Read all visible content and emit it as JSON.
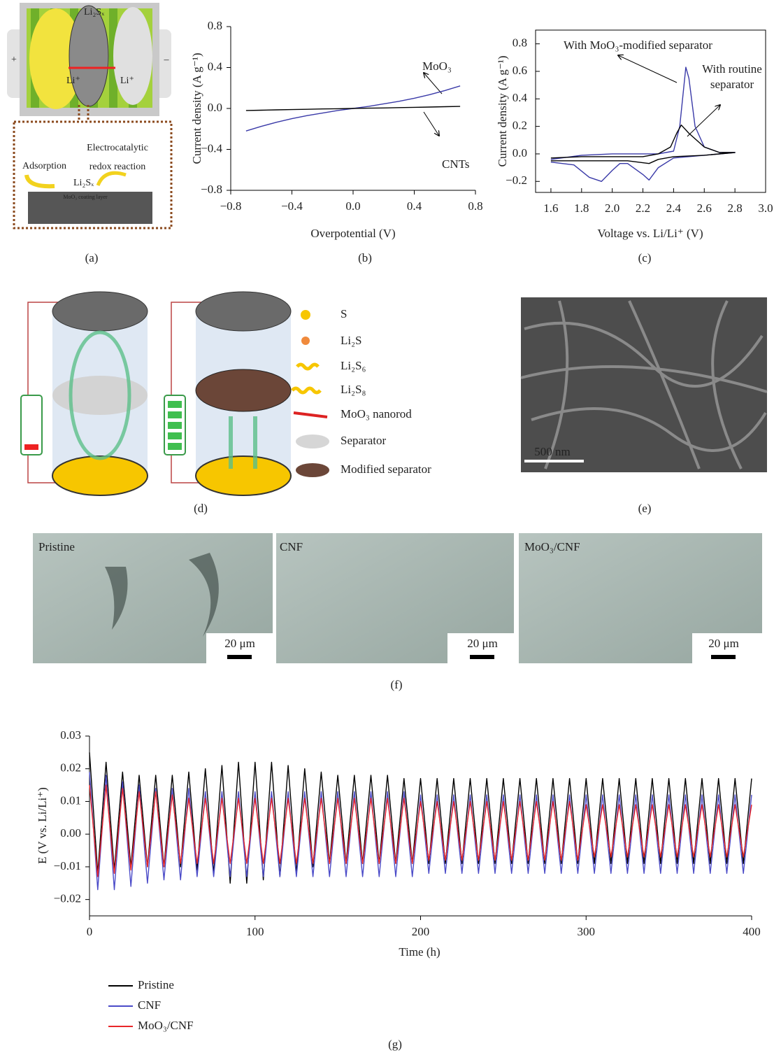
{
  "panel_labels": [
    "(a)",
    "(b)",
    "(c)",
    "(d)",
    "(e)",
    "(f)",
    "(g)"
  ],
  "panel_a": {
    "texts": [
      "Li₂Sₓ",
      "Li⁺",
      "Li⁺",
      "+",
      "–",
      "Adsorption",
      "Electrocatalytic",
      "redox reaction",
      "Li₂Sₓ",
      "MoO₃ coating layer"
    ]
  },
  "panel_d": {
    "legend": [
      "S",
      "Li₂S",
      "Li₂S₆",
      "Li₂S₈",
      "MoO₃ nanorod",
      "Separator",
      "Modified separator"
    ]
  },
  "panel_e": {
    "scale_bar": "500 nm"
  },
  "panel_f": {
    "images": [
      {
        "label": "Pristine",
        "scale_bar": "20 μm"
      },
      {
        "label": "CNF",
        "scale_bar": "20 μm"
      },
      {
        "label": "MoO₃/CNF",
        "scale_bar": "20 μm"
      }
    ]
  },
  "chart_data": [
    {
      "type": "line",
      "xlabel": "Overpotential (V)",
      "ylabel": "Current density (A g⁻¹)",
      "x": [
        -0.7,
        -0.6,
        -0.5,
        -0.4,
        -0.3,
        -0.2,
        -0.1,
        0,
        0.1,
        0.2,
        0.3,
        0.4,
        0.5,
        0.6,
        0.7
      ],
      "series": [
        {
          "name": "MoO₃",
          "color": "#3a3aa8",
          "values": [
            -0.22,
            -0.175,
            -0.135,
            -0.1,
            -0.07,
            -0.045,
            -0.02,
            0,
            0.02,
            0.045,
            0.07,
            0.1,
            0.135,
            0.175,
            0.22
          ]
        },
        {
          "name": "CNTs",
          "color": "#000000",
          "values": [
            -0.02,
            -0.017,
            -0.014,
            -0.011,
            -0.008,
            -0.005,
            -0.003,
            0,
            0.003,
            0.005,
            0.008,
            0.011,
            0.014,
            0.017,
            0.02
          ]
        }
      ],
      "xlim": [
        -0.8,
        0.8
      ],
      "ylim": [
        -0.8,
        0.8
      ],
      "xticks": [
        {
          "value": -0.8,
          "label": "−0.8"
        },
        {
          "value": -0.4,
          "label": "−0.4"
        },
        {
          "value": 0,
          "label": "0.0"
        },
        0.4,
        0.8
      ],
      "yticks": [
        {
          "value": -0.8,
          "label": "−0.8"
        },
        {
          "value": -0.4,
          "label": "−0.4"
        },
        {
          "value": 0,
          "label": "0.0"
        },
        0.4,
        0.8
      ]
    },
    {
      "type": "line",
      "xlabel": "Voltage vs. Li/Li⁺ (V)",
      "ylabel": "Current density (A g⁻¹)",
      "series": [
        {
          "name": "With MoO₃-modified separator",
          "color": "#3a3aa8",
          "x": [
            1.6,
            1.8,
            2.0,
            2.2,
            2.3,
            2.4,
            2.44,
            2.48,
            2.5,
            2.54,
            2.6,
            2.7,
            2.8,
            2.6,
            2.4,
            2.3,
            2.24,
            2.2,
            2.1,
            2.05,
            2.0,
            1.93,
            1.85,
            1.75,
            1.6
          ],
          "values": [
            -0.04,
            -0.01,
            0.0,
            0.0,
            0.0,
            0.02,
            0.2,
            0.63,
            0.55,
            0.2,
            0.05,
            0.01,
            0.01,
            -0.01,
            -0.03,
            -0.1,
            -0.19,
            -0.15,
            -0.07,
            -0.07,
            -0.12,
            -0.2,
            -0.17,
            -0.08,
            -0.06
          ]
        },
        {
          "name": "With routine separator",
          "color": "#000000",
          "x": [
            1.6,
            1.8,
            2.0,
            2.2,
            2.3,
            2.38,
            2.42,
            2.45,
            2.5,
            2.6,
            2.7,
            2.8,
            2.6,
            2.4,
            2.3,
            2.24,
            2.1,
            2.0,
            1.8,
            1.6
          ],
          "values": [
            -0.03,
            -0.02,
            -0.02,
            -0.02,
            0.0,
            0.05,
            0.15,
            0.21,
            0.15,
            0.05,
            0.01,
            0.01,
            -0.01,
            -0.02,
            -0.04,
            -0.07,
            -0.05,
            -0.05,
            -0.05,
            -0.05
          ]
        }
      ],
      "xlim": [
        1.5,
        3.0
      ],
      "ylim": [
        -0.28,
        0.9
      ],
      "xticks": [
        1.6,
        1.8,
        {
          "value": 2,
          "label": "2.0"
        },
        2.2,
        2.4,
        2.6,
        2.8,
        {
          "value": 3,
          "label": "3.0"
        }
      ],
      "yticks": [
        {
          "value": -0.2,
          "label": "−0.2"
        },
        {
          "value": 0,
          "label": "0.0"
        },
        0.2,
        0.4,
        0.6,
        0.8
      ]
    },
    {
      "type": "line",
      "xlabel": "Time (h)",
      "ylabel": "E (V vs. Li/Li⁺)",
      "legend": "bottom-left",
      "x": [
        0,
        5,
        10,
        15,
        20,
        25,
        30,
        35,
        40,
        45,
        50,
        55,
        60,
        65,
        70,
        75,
        80,
        85,
        90,
        95,
        100,
        105,
        110,
        115,
        120,
        125,
        130,
        135,
        140,
        145,
        150,
        155,
        160,
        165,
        170,
        175,
        180,
        185,
        190,
        195,
        200,
        205,
        210,
        215,
        220,
        225,
        230,
        235,
        240,
        245,
        250,
        255,
        260,
        265,
        270,
        275,
        280,
        285,
        290,
        295,
        300,
        305,
        310,
        315,
        320,
        325,
        330,
        335,
        340,
        345,
        350,
        355,
        360,
        365,
        370,
        375,
        380,
        385,
        390,
        395,
        400
      ],
      "series": [
        {
          "name": "Pristine",
          "color": "#000000",
          "values": [
            0.025,
            -0.012,
            0.022,
            -0.011,
            0.019,
            -0.01,
            0.018,
            -0.01,
            0.018,
            -0.01,
            0.018,
            -0.01,
            0.019,
            -0.011,
            0.02,
            -0.012,
            0.021,
            -0.015,
            0.022,
            -0.015,
            0.022,
            -0.014,
            0.022,
            -0.013,
            0.021,
            -0.012,
            0.02,
            -0.01,
            0.019,
            -0.009,
            0.018,
            -0.009,
            0.018,
            -0.009,
            0.018,
            -0.009,
            0.018,
            -0.009,
            0.017,
            -0.009,
            0.017,
            -0.009,
            0.017,
            -0.009,
            0.017,
            -0.009,
            0.017,
            -0.009,
            0.017,
            -0.009,
            0.017,
            -0.009,
            0.017,
            -0.009,
            0.017,
            -0.009,
            0.017,
            -0.009,
            0.017,
            -0.009,
            0.017,
            -0.009,
            0.017,
            -0.009,
            0.017,
            -0.009,
            0.017,
            -0.009,
            0.017,
            -0.009,
            0.017,
            -0.009,
            0.017,
            -0.009,
            0.017,
            -0.009,
            0.017,
            -0.009,
            0.017,
            -0.009,
            0.017
          ]
        },
        {
          "name": "CNF",
          "color": "#4b4bc8",
          "values": [
            0.019,
            -0.017,
            0.018,
            -0.017,
            0.016,
            -0.016,
            0.015,
            -0.015,
            0.014,
            -0.014,
            0.014,
            -0.014,
            0.014,
            -0.013,
            0.013,
            -0.013,
            0.013,
            -0.013,
            0.013,
            -0.013,
            0.013,
            -0.013,
            0.013,
            -0.013,
            0.013,
            -0.013,
            0.013,
            -0.013,
            0.013,
            -0.013,
            0.013,
            -0.013,
            0.013,
            -0.013,
            0.013,
            -0.013,
            0.013,
            -0.013,
            0.013,
            -0.013,
            0.012,
            -0.012,
            0.012,
            -0.012,
            0.012,
            -0.012,
            0.012,
            -0.012,
            0.012,
            -0.012,
            0.012,
            -0.012,
            0.012,
            -0.012,
            0.012,
            -0.012,
            0.012,
            -0.012,
            0.012,
            -0.012,
            0.012,
            -0.012,
            0.012,
            -0.012,
            0.012,
            -0.012,
            0.012,
            -0.012,
            0.012,
            -0.012,
            0.012,
            -0.012,
            0.012,
            -0.012,
            0.012,
            -0.012,
            0.012,
            -0.012,
            0.012,
            -0.012,
            0.012
          ]
        },
        {
          "name": "MoO₃/CNF",
          "color": "#e8262a",
          "values": [
            0.015,
            -0.013,
            0.015,
            -0.012,
            0.014,
            -0.011,
            0.013,
            -0.01,
            0.013,
            -0.01,
            0.012,
            -0.009,
            0.011,
            -0.009,
            0.011,
            -0.009,
            0.011,
            -0.009,
            0.011,
            -0.009,
            0.011,
            -0.009,
            0.011,
            -0.009,
            0.011,
            -0.009,
            0.011,
            -0.009,
            0.011,
            -0.009,
            0.011,
            -0.009,
            0.011,
            -0.009,
            0.011,
            -0.009,
            0.011,
            -0.009,
            0.011,
            -0.009,
            0.01,
            -0.008,
            0.01,
            -0.008,
            0.01,
            -0.008,
            0.01,
            -0.008,
            0.01,
            -0.008,
            0.01,
            -0.008,
            0.01,
            -0.008,
            0.01,
            -0.008,
            0.01,
            -0.008,
            0.01,
            -0.008,
            0.009,
            -0.007,
            0.009,
            -0.007,
            0.009,
            -0.007,
            0.009,
            -0.007,
            0.009,
            -0.007,
            0.009,
            -0.007,
            0.009,
            -0.007,
            0.009,
            -0.007,
            0.009,
            -0.007,
            0.009,
            -0.007,
            0.009
          ]
        }
      ],
      "xlim": [
        0,
        400
      ],
      "ylim": [
        -0.025,
        0.03
      ],
      "xticks": [
        0,
        100,
        200,
        300,
        400
      ],
      "yticks": [
        {
          "value": -0.02,
          "label": "−0.02"
        },
        {
          "value": -0.01,
          "label": "−0.01"
        },
        {
          "value": 0,
          "label": "0.00"
        },
        0.01,
        0.02,
        0.03
      ]
    }
  ]
}
